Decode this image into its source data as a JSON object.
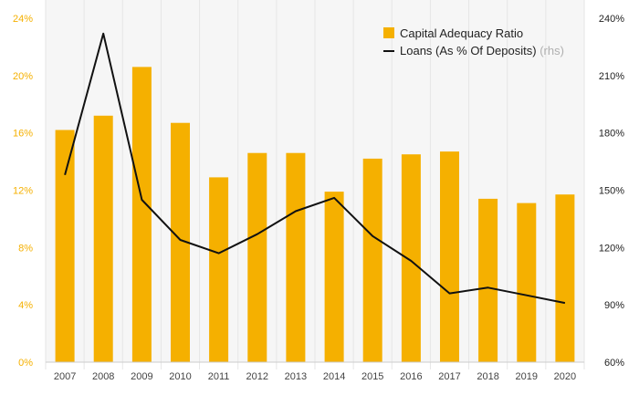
{
  "chart_data": {
    "type": "bar",
    "categories": [
      "2007",
      "2008",
      "2009",
      "2010",
      "2011",
      "2012",
      "2013",
      "2014",
      "2015",
      "2016",
      "2017",
      "2018",
      "2019",
      "2020"
    ],
    "series": [
      {
        "name": "Capital Adequacy Ratio",
        "type": "bar",
        "axis": "left",
        "color": "#F5B000",
        "values": [
          16.2,
          17.2,
          20.6,
          16.7,
          12.9,
          14.6,
          14.6,
          11.9,
          14.2,
          14.5,
          14.7,
          11.4,
          11.1,
          11.7
        ]
      },
      {
        "name": "Loans (As % Of Deposits)",
        "name_suffix": "(rhs)",
        "type": "line",
        "axis": "right",
        "color": "#111111",
        "values": [
          158,
          232,
          145,
          124,
          117,
          127,
          139,
          146,
          126,
          113,
          96,
          99,
          95,
          91
        ]
      }
    ],
    "left_axis": {
      "ylim": [
        0,
        24
      ],
      "ticks": [
        0,
        4,
        8,
        12,
        16,
        20,
        24
      ],
      "tick_labels": [
        "0%",
        "4%",
        "8%",
        "12%",
        "16%",
        "20%",
        "24%"
      ],
      "label_color": "#F5B000"
    },
    "right_axis": {
      "ylim": [
        60,
        240
      ],
      "ticks": [
        60,
        90,
        120,
        150,
        180,
        210,
        240
      ],
      "tick_labels": [
        "60%",
        "90%",
        "120%",
        "150%",
        "180%",
        "210%",
        "240%"
      ]
    },
    "grid": "vertical",
    "legend_position": "top-right",
    "title": "",
    "xlabel": "",
    "ylabel": ""
  }
}
